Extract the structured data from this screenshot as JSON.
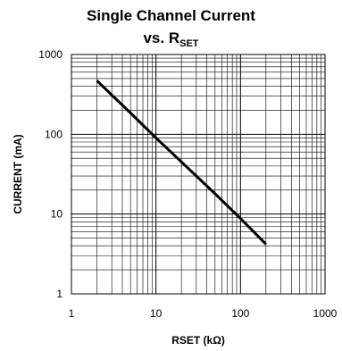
{
  "chart_data": {
    "type": "line",
    "title_line1": "Single Channel Current",
    "title_line2_prefix": "vs. R",
    "title_line2_sub": "SET",
    "xlabel": "RSET (kΩ)",
    "ylabel": "CURRENT (mA)",
    "x_scale": "log",
    "y_scale": "log",
    "xlim": [
      1,
      1000
    ],
    "ylim": [
      1,
      1000
    ],
    "x_ticks": [
      "1",
      "10",
      "100",
      "1000"
    ],
    "y_ticks": [
      "1",
      "10",
      "100",
      "1000"
    ],
    "grid": true,
    "series": [
      {
        "x": [
          2,
          5,
          10,
          20,
          50,
          100,
          200
        ],
        "y": [
          470,
          185,
          90,
          45,
          18,
          8.8,
          4.2
        ]
      }
    ]
  }
}
